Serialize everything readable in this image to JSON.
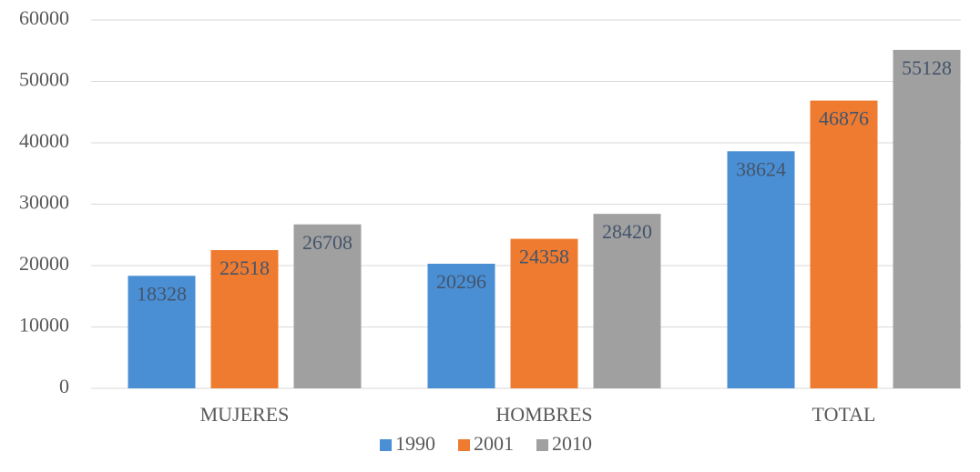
{
  "chart_data": {
    "type": "bar",
    "categories": [
      "MUJERES",
      "HOMBRES",
      "TOTAL"
    ],
    "series": [
      {
        "name": "1990",
        "color": "#4a8fd4",
        "values": [
          18328,
          20296,
          38624
        ]
      },
      {
        "name": "2001",
        "color": "#ee7b30",
        "values": [
          22518,
          24358,
          46876
        ]
      },
      {
        "name": "2010",
        "color": "#a0a0a0",
        "values": [
          26708,
          28420,
          55128
        ]
      }
    ],
    "ylim": [
      0,
      60000
    ],
    "yticks": [
      0,
      10000,
      20000,
      30000,
      40000,
      50000,
      60000
    ],
    "grid": true,
    "legend": "bottom"
  }
}
